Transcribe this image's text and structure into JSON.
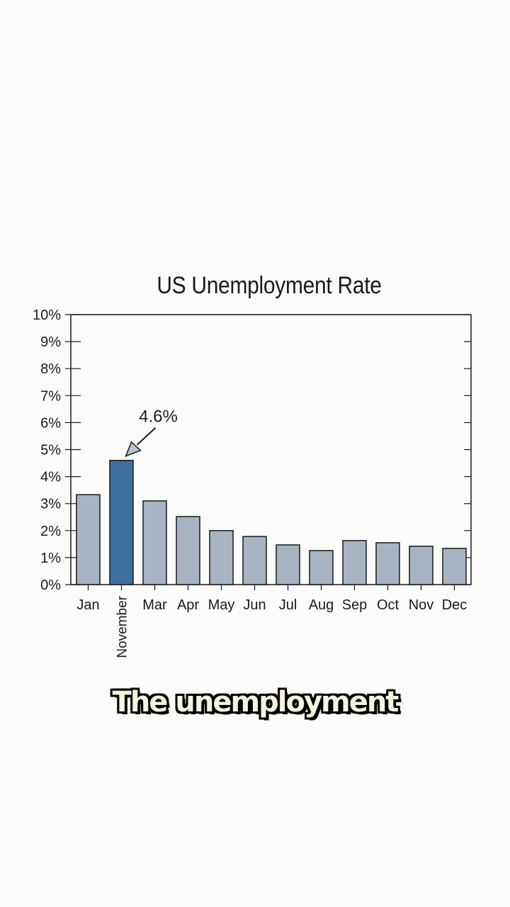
{
  "chart_data": {
    "type": "bar",
    "title": "US Unemployment Rate",
    "xlabel": "",
    "ylabel": "",
    "categories": [
      "Jan",
      "November",
      "Mar",
      "Apr",
      "May",
      "Jun",
      "Jul",
      "Aug",
      "Sep",
      "Oct",
      "Nov",
      "Dec"
    ],
    "values": [
      3.33,
      4.6,
      3.1,
      2.52,
      2.0,
      1.78,
      1.47,
      1.26,
      1.63,
      1.55,
      1.42,
      1.34
    ],
    "ylim": [
      0,
      10
    ],
    "yticks": [
      "0%",
      "1%",
      "2%",
      "3%",
      "4%",
      "5%",
      "6%",
      "7%",
      "8%",
      "9%",
      "10%"
    ],
    "grid": false,
    "highlight": {
      "index": 1,
      "label": "4.6%"
    },
    "colors": {
      "bar": "#a8b4c2",
      "highlight": "#3d6f9e",
      "outline": "#1a1a1a"
    }
  },
  "caption": "The unemployment"
}
